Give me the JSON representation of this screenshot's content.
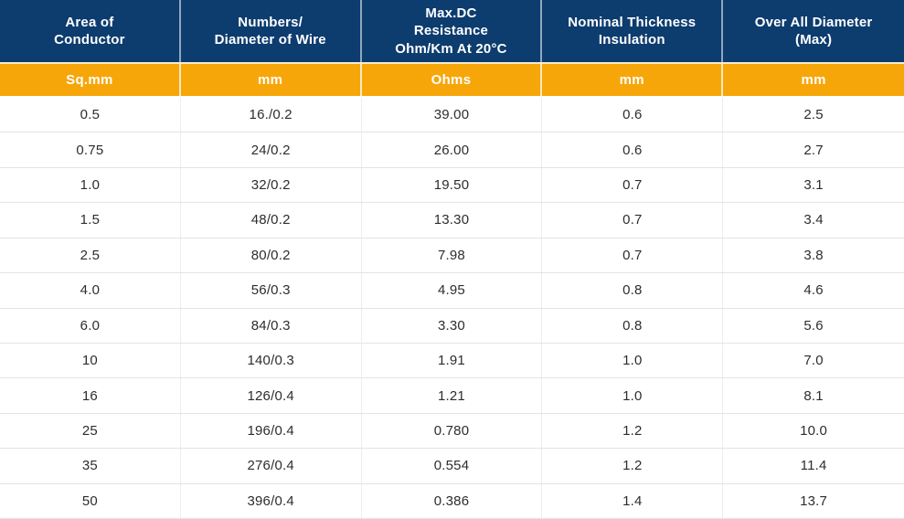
{
  "colors": {
    "header_bg": "#0d3c6e",
    "units_bg": "#f7a609",
    "header_text": "#ffffff",
    "body_text": "#2d2d2d",
    "row_divider": "#e4e4e4",
    "column_divider": "#ededed"
  },
  "chart_data": {
    "type": "table",
    "title": "",
    "columns": [
      "Area of Conductor",
      "Numbers/ Diameter of Wire",
      "Max.DC Resistance Ohm/Km At 20°C",
      "Nominal Thickness Insulation",
      "Over All Diameter (Max)"
    ],
    "header_lines": [
      [
        "Area of",
        "Conductor"
      ],
      [
        "Numbers/",
        "Diameter of Wire"
      ],
      [
        "Max.DC",
        "Resistance",
        "Ohm/Km At 20°C"
      ],
      [
        "Nominal Thickness",
        "Insulation"
      ],
      [
        "Over All Diameter",
        "(Max)"
      ]
    ],
    "units": [
      "Sq.mm",
      "mm",
      "Ohms",
      "mm",
      "mm"
    ],
    "rows": [
      [
        "0.5",
        "16./0.2",
        "39.00",
        "0.6",
        "2.5"
      ],
      [
        "0.75",
        "24/0.2",
        "26.00",
        "0.6",
        "2.7"
      ],
      [
        "1.0",
        "32/0.2",
        "19.50",
        "0.7",
        "3.1"
      ],
      [
        "1.5",
        "48/0.2",
        "13.30",
        "0.7",
        "3.4"
      ],
      [
        "2.5",
        "80/0.2",
        "7.98",
        "0.7",
        "3.8"
      ],
      [
        "4.0",
        "56/0.3",
        "4.95",
        "0.8",
        "4.6"
      ],
      [
        "6.0",
        "84/0.3",
        "3.30",
        "0.8",
        "5.6"
      ],
      [
        "10",
        "140/0.3",
        "1.91",
        "1.0",
        "7.0"
      ],
      [
        "16",
        "126/0.4",
        "1.21",
        "1.0",
        "8.1"
      ],
      [
        "25",
        "196/0.4",
        "0.780",
        "1.2",
        "10.0"
      ],
      [
        "35",
        "276/0.4",
        "0.554",
        "1.2",
        "11.4"
      ],
      [
        "50",
        "396/0.4",
        "0.386",
        "1.4",
        "13.7"
      ]
    ]
  }
}
